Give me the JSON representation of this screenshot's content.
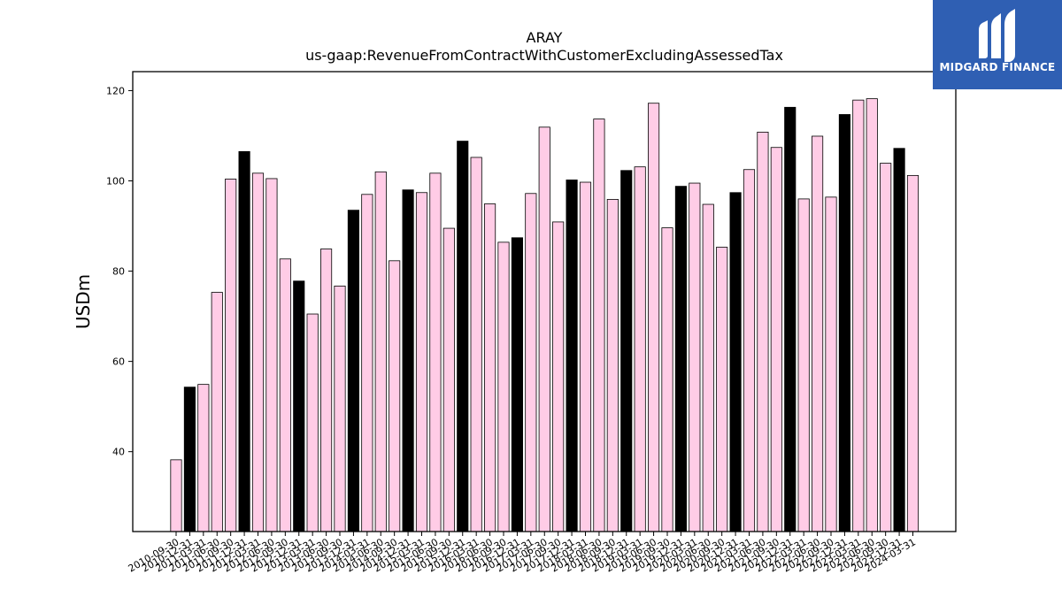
{
  "brand": {
    "name": "MIDGARD FINANCE",
    "color": "#2f5fb3",
    "icon": "midgard-logo-icon"
  },
  "colors": {
    "bar_default": "#ffcce6",
    "bar_highlight": "#000000",
    "bar_edge": "#000000"
  },
  "chart_data": {
    "type": "bar",
    "title": "ARAY",
    "subtitle": "us-gaap:RevenueFromContractWithCustomerExcludingAssessedTax",
    "xlabel": "",
    "ylabel": "USDm",
    "ylim": [
      22.3,
      124.2
    ],
    "yticks": [
      40,
      60,
      80,
      100,
      120
    ],
    "grid": false,
    "legend": "none",
    "categories": [
      "2010-09-30",
      "2010-12-31",
      "2011-03-31",
      "2011-06-30",
      "2011-09-30",
      "2011-12-31",
      "2012-03-31",
      "2012-06-30",
      "2012-09-30",
      "2012-12-31",
      "2013-03-31",
      "2013-06-30",
      "2013-09-30",
      "2013-12-31",
      "2014-03-31",
      "2014-06-30",
      "2014-09-30",
      "2014-12-31",
      "2015-03-31",
      "2015-06-30",
      "2015-09-30",
      "2015-12-31",
      "2016-03-31",
      "2016-06-30",
      "2016-09-30",
      "2016-12-31",
      "2017-03-31",
      "2017-06-30",
      "2017-09-30",
      "2017-12-31",
      "2018-03-31",
      "2018-06-30",
      "2018-09-30",
      "2018-12-31",
      "2019-03-31",
      "2019-06-30",
      "2019-09-30",
      "2019-12-31",
      "2020-03-31",
      "2020-06-30",
      "2020-09-30",
      "2020-12-31",
      "2021-03-31",
      "2021-06-30",
      "2021-09-30",
      "2021-12-31",
      "2022-03-31",
      "2022-06-30",
      "2022-09-30",
      "2022-12-31",
      "2023-03-31",
      "2023-06-30",
      "2023-09-30",
      "2023-12-31",
      "2024-03-31"
    ],
    "values": [
      38.2,
      54.3,
      54.9,
      75.3,
      100.4,
      106.5,
      101.7,
      100.5,
      82.7,
      77.8,
      70.5,
      84.9,
      76.7,
      93.5,
      97.0,
      102.0,
      82.3,
      98.0,
      97.4,
      101.7,
      89.5,
      108.8,
      105.2,
      94.9,
      86.4,
      87.4,
      97.2,
      111.9,
      90.9,
      100.2,
      99.7,
      113.7,
      95.9,
      102.3,
      103.1,
      117.2,
      89.6,
      98.8,
      99.5,
      94.8,
      85.3,
      97.4,
      102.5,
      110.8,
      107.4,
      116.3,
      96.0,
      109.9,
      96.4,
      114.7,
      117.9,
      118.2,
      103.9,
      107.2,
      101.2
    ],
    "highlight": [
      false,
      true,
      false,
      false,
      false,
      true,
      false,
      false,
      false,
      true,
      false,
      false,
      false,
      true,
      false,
      false,
      false,
      true,
      false,
      false,
      false,
      true,
      false,
      false,
      false,
      true,
      false,
      false,
      false,
      true,
      false,
      false,
      false,
      true,
      false,
      false,
      false,
      true,
      false,
      false,
      false,
      true,
      false,
      false,
      false,
      true,
      false,
      false,
      false,
      true,
      false,
      false,
      false,
      true,
      false
    ]
  }
}
